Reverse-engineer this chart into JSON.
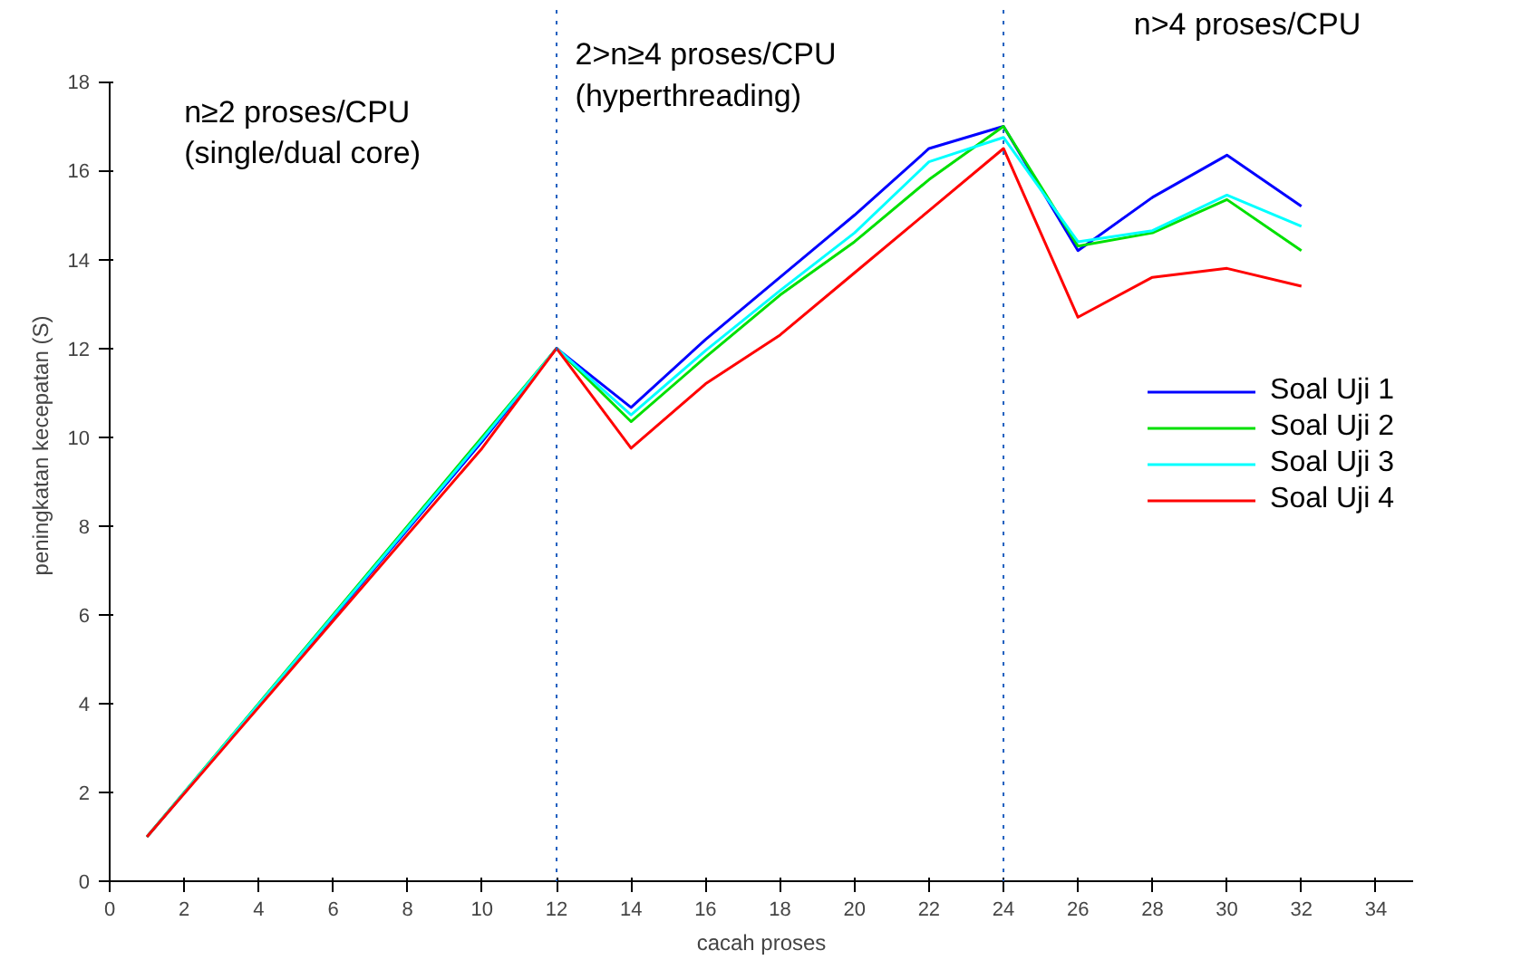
{
  "chart_data": {
    "type": "line",
    "xlabel": "cacah proses",
    "ylabel": "peningkatan kecepatan (S)",
    "x": [
      1,
      10,
      12,
      14,
      16,
      18,
      20,
      22,
      24,
      26,
      28,
      30,
      32
    ],
    "series": [
      {
        "name": "Soal Uji 1",
        "color": "#0000ff",
        "values": [
          1,
          9.9,
          12,
          10.67,
          12.2,
          13.6,
          15.0,
          16.5,
          17.0,
          14.2,
          15.4,
          16.35,
          15.2
        ]
      },
      {
        "name": "Soal Uji 2",
        "color": "#00e000",
        "values": [
          1,
          10.0,
          12,
          10.35,
          11.8,
          13.2,
          14.4,
          15.8,
          17.0,
          14.3,
          14.6,
          15.35,
          14.2
        ]
      },
      {
        "name": "Soal Uji 3",
        "color": "#00ffff",
        "values": [
          1,
          9.95,
          12,
          10.5,
          11.95,
          13.3,
          14.6,
          16.2,
          16.75,
          14.4,
          14.65,
          15.45,
          14.75
        ]
      },
      {
        "name": "Soal Uji 4",
        "color": "#ff0000",
        "values": [
          1,
          9.75,
          12,
          9.75,
          11.2,
          12.3,
          13.7,
          15.1,
          16.5,
          12.7,
          13.6,
          13.8,
          13.4
        ]
      }
    ],
    "xlim": [
      0,
      35
    ],
    "xticks": [
      0,
      2,
      4,
      6,
      8,
      10,
      12,
      14,
      16,
      18,
      20,
      22,
      24,
      26,
      28,
      30,
      32,
      34
    ],
    "ylim": [
      0,
      18
    ],
    "yticks": [
      0,
      2,
      4,
      6,
      8,
      10,
      12,
      14,
      16,
      18
    ],
    "ref_lines": [
      {
        "axis": "x",
        "value": 12,
        "color": "#1f5fbf",
        "line_style": "dotted"
      },
      {
        "axis": "x",
        "value": 24,
        "color": "#1f5fbf",
        "line_style": "dotted"
      }
    ],
    "annotations": [
      "n≥2 proses/CPU\n(single/dual core)",
      "2>n≥4 proses/CPU\n(hyperthreading)",
      "n>4 proses/CPU"
    ],
    "grid": false,
    "legend": "right",
    "line_style": "solid",
    "marker": "none"
  }
}
